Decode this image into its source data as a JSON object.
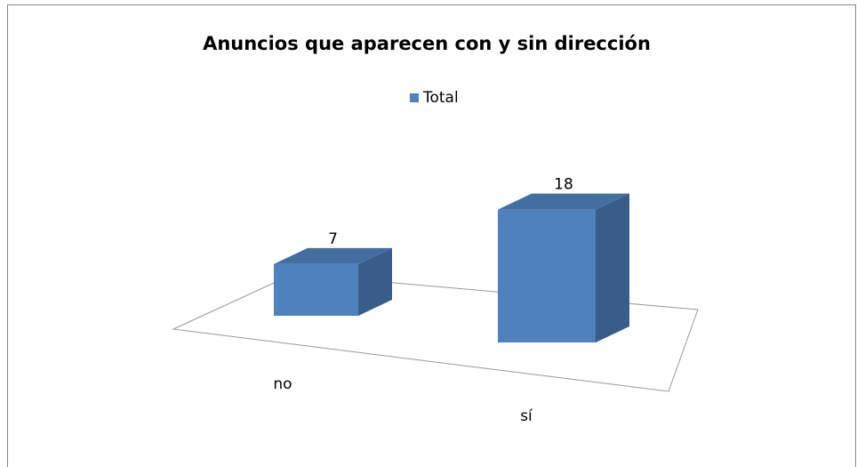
{
  "chart_data": {
    "type": "bar3d",
    "title": "Anuncios que aparecen con y sin dirección",
    "categories": [
      "no",
      "sí"
    ],
    "series": [
      {
        "name": "Total",
        "color": "#4f81bd",
        "values": [
          7,
          18
        ]
      }
    ],
    "legend": "top"
  }
}
